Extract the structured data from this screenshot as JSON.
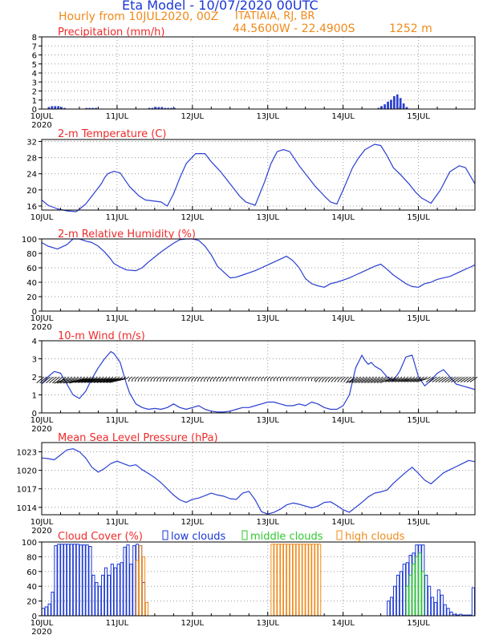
{
  "header": {
    "title": "Eta Model - 10/07/2020 00UTC",
    "subtitle": "Hourly from 10JUL2020, 00Z",
    "station": "ITATIAIA, RJ, BR",
    "coords": "44.5600W - 22.4900S",
    "elevation": "1252  m",
    "colors": {
      "title": "#1a37d6",
      "orange": "#f08a19",
      "red": "#f02a2a"
    }
  },
  "x_axis": {
    "labels": [
      "10JUL",
      "11JUL",
      "12JUL",
      "13JUL",
      "14JUL",
      "15JUL"
    ],
    "year": "2020",
    "range_hours": [
      0,
      138
    ]
  },
  "chart_data": [
    {
      "type": "bar",
      "title": "Precipitation (mm/h)",
      "ylim": [
        0,
        8
      ],
      "yticks": [
        0,
        1,
        2,
        3,
        4,
        5,
        6,
        7,
        8
      ],
      "series": [
        {
          "name": "precipitation",
          "color": "#2a3fd0",
          "x": [
            2,
            3,
            4,
            5,
            6,
            7,
            14,
            15,
            16,
            17,
            34,
            35,
            36,
            37,
            38,
            39,
            40,
            41,
            42,
            107,
            108,
            109,
            110,
            111,
            112,
            113,
            114,
            115,
            116
          ],
          "values": [
            0.2,
            0.3,
            0.3,
            0.3,
            0.2,
            0.1,
            0.1,
            0.1,
            0.1,
            0.1,
            0.1,
            0.1,
            0.2,
            0.2,
            0.2,
            0.1,
            0.1,
            0.1,
            0.1,
            0.1,
            0.3,
            0.5,
            0.8,
            1.0,
            1.4,
            1.6,
            1.2,
            0.6,
            0.2
          ]
        }
      ]
    },
    {
      "type": "line",
      "title": "2-m Temperature (C)",
      "ylim": [
        15,
        32.5
      ],
      "yticks": [
        16,
        20,
        24,
        28,
        32
      ],
      "series": [
        {
          "name": "temperature",
          "color": "#2a3fd0",
          "x": [
            0,
            2,
            5,
            8,
            11,
            14,
            17,
            19,
            20,
            21,
            23,
            25,
            28,
            31,
            33,
            36,
            38,
            39,
            40,
            42,
            44,
            46,
            49,
            52,
            54,
            57,
            59,
            61,
            63,
            65,
            68,
            71,
            73,
            75,
            77,
            79,
            82,
            85,
            87,
            90,
            92,
            94,
            96,
            99,
            101,
            103,
            106,
            108,
            110,
            112,
            114,
            117,
            119,
            121,
            124,
            127,
            130,
            133,
            135,
            138
          ],
          "values": [
            17.5,
            16.2,
            15.3,
            14.8,
            14.6,
            16.5,
            19.5,
            21.5,
            23.0,
            24.0,
            24.6,
            24.2,
            20.8,
            18.5,
            17.5,
            17.2,
            17.0,
            16.5,
            16.0,
            19.0,
            23.0,
            26.5,
            29.0,
            29.0,
            27.0,
            24.5,
            22.5,
            20.5,
            18.5,
            17.0,
            16.2,
            22.0,
            26.5,
            29.5,
            30.0,
            29.5,
            26.0,
            23.0,
            21.0,
            18.5,
            17.0,
            16.5,
            20.0,
            25.5,
            28.0,
            30.0,
            31.3,
            31.0,
            28.5,
            25.5,
            24.0,
            21.5,
            19.5,
            18.0,
            16.7,
            20.0,
            24.5,
            26.0,
            25.5,
            21.5
          ]
        }
      ]
    },
    {
      "type": "line",
      "title": "2-m Relative Humidity (%)",
      "ylim": [
        0,
        100
      ],
      "yticks": [
        0,
        20,
        40,
        60,
        80,
        100
      ],
      "series": [
        {
          "name": "relative_humidity",
          "color": "#2a3fd0",
          "x": [
            0,
            2,
            5,
            8,
            10,
            12,
            14,
            16,
            18,
            20,
            22,
            23,
            25,
            27,
            30,
            32,
            34,
            36,
            38,
            40,
            42,
            44,
            46,
            48,
            50,
            52,
            54,
            56,
            58,
            60,
            62,
            64,
            66,
            68,
            70,
            72,
            74,
            76,
            78,
            80,
            82,
            84,
            86,
            88,
            90,
            92,
            94,
            96,
            98,
            100,
            102,
            104,
            106,
            108,
            110,
            112,
            114,
            116,
            118,
            120,
            122,
            124,
            126,
            128,
            130,
            132,
            134,
            136,
            138
          ],
          "values": [
            95,
            90,
            86,
            92,
            100,
            100,
            97,
            95,
            90,
            82,
            72,
            66,
            61,
            57,
            56,
            60,
            68,
            75,
            82,
            88,
            94,
            99,
            100,
            100,
            98,
            90,
            78,
            62,
            54,
            46,
            47,
            50,
            53,
            56,
            60,
            64,
            68,
            72,
            76,
            70,
            60,
            45,
            38,
            35,
            33,
            38,
            40,
            43,
            46,
            50,
            54,
            58,
            62,
            65,
            58,
            50,
            44,
            38,
            34,
            33,
            38,
            40,
            44,
            46,
            48,
            52,
            56,
            60,
            64
          ]
        }
      ]
    },
    {
      "type": "line",
      "title": "10-m Wind (m/s)",
      "ylim": [
        0,
        4
      ],
      "yticks": [
        0,
        1,
        2,
        3,
        4
      ],
      "series": [
        {
          "name": "wind_speed",
          "color": "#2a3fd0",
          "x": [
            0,
            2,
            4,
            6,
            8,
            10,
            12,
            14,
            16,
            18,
            20,
            22,
            23,
            25,
            26,
            27,
            28,
            30,
            32,
            34,
            36,
            38,
            40,
            42,
            44,
            46,
            48,
            50,
            52,
            54,
            56,
            58,
            60,
            62,
            64,
            66,
            68,
            70,
            72,
            74,
            76,
            78,
            80,
            82,
            84,
            86,
            88,
            90,
            92,
            94,
            96,
            98,
            100,
            102,
            103,
            104,
            105,
            106,
            107,
            108,
            109,
            110,
            111,
            112,
            114,
            116,
            118,
            120,
            122,
            124,
            126,
            128,
            130,
            132,
            134,
            136,
            138
          ],
          "values": [
            1.6,
            2.0,
            2.3,
            2.2,
            1.6,
            1.0,
            0.8,
            1.2,
            1.9,
            2.5,
            3.0,
            3.4,
            3.3,
            2.8,
            2.2,
            1.6,
            1.1,
            0.5,
            0.3,
            0.2,
            0.25,
            0.2,
            0.3,
            0.5,
            0.3,
            0.2,
            0.3,
            0.4,
            0.2,
            0.1,
            0.05,
            0.05,
            0.1,
            0.2,
            0.3,
            0.3,
            0.4,
            0.5,
            0.6,
            0.6,
            0.5,
            0.4,
            0.4,
            0.5,
            0.4,
            0.6,
            0.5,
            0.3,
            0.2,
            0.2,
            0.4,
            1.0,
            2.5,
            3.2,
            2.9,
            2.7,
            2.8,
            2.6,
            2.5,
            2.4,
            2.2,
            2.0,
            1.9,
            1.8,
            2.3,
            3.1,
            3.2,
            2.0,
            1.5,
            1.8,
            2.2,
            2.4,
            2.0,
            1.6,
            1.5,
            1.4,
            1.3
          ]
        }
      ]
    },
    {
      "type": "line",
      "title": "Mean Sea Level Pressure (hPa)",
      "ylim": [
        1012.8,
        1024.5
      ],
      "yticks": [
        1014,
        1017,
        1020,
        1023
      ],
      "series": [
        {
          "name": "mslp",
          "color": "#2a3fd0",
          "x": [
            0,
            2,
            4,
            6,
            8,
            10,
            12,
            14,
            16,
            18,
            20,
            22,
            24,
            26,
            28,
            30,
            32,
            34,
            36,
            38,
            40,
            42,
            44,
            46,
            48,
            50,
            52,
            54,
            56,
            58,
            60,
            62,
            64,
            66,
            68,
            70,
            72,
            74,
            76,
            78,
            80,
            82,
            84,
            86,
            88,
            90,
            92,
            94,
            96,
            98,
            100,
            102,
            104,
            106,
            108,
            110,
            112,
            114,
            116,
            118,
            120,
            122,
            124,
            126,
            128,
            130,
            132,
            134,
            136,
            138
          ],
          "values": [
            1022,
            1021.9,
            1021.7,
            1022.5,
            1023.3,
            1023.5,
            1023,
            1022,
            1020.5,
            1019.7,
            1020.3,
            1021.1,
            1021.5,
            1021.1,
            1020.7,
            1020.9,
            1020.1,
            1019.5,
            1018.8,
            1018,
            1017,
            1016,
            1015.2,
            1014.8,
            1015.3,
            1015.5,
            1015.9,
            1016.3,
            1016,
            1015.8,
            1015.4,
            1015.3,
            1016.3,
            1016.6,
            1015.2,
            1013.3,
            1012.9,
            1013.2,
            1013.7,
            1014.4,
            1014.7,
            1014.5,
            1014.2,
            1013.9,
            1014.2,
            1014.8,
            1014.9,
            1014.3,
            1013.6,
            1013.2,
            1014,
            1014.8,
            1015.7,
            1016.3,
            1016.5,
            1016.8,
            1017.9,
            1018.8,
            1019.7,
            1020.5,
            1019.5,
            1018.4,
            1017.8,
            1018.7,
            1019.6,
            1020.1,
            1020.6,
            1021.1,
            1021.6,
            1021.4
          ]
        }
      ]
    },
    {
      "type": "bar",
      "title": "Cloud Cover (%)",
      "legend": [
        "low clouds",
        "middle clouds",
        "high clouds"
      ],
      "ylim": [
        0,
        100
      ],
      "yticks": [
        0,
        20,
        40,
        60,
        80,
        100
      ],
      "series": [
        {
          "name": "low clouds",
          "color": "#1a37d6",
          "x": [
            0,
            1,
            2,
            3,
            4,
            5,
            6,
            7,
            8,
            9,
            10,
            11,
            12,
            13,
            14,
            15,
            16,
            17,
            18,
            19,
            20,
            21,
            22,
            23,
            24,
            25,
            26,
            27,
            28,
            29,
            30,
            31,
            32
          ],
          "values": [
            10,
            12,
            16,
            32,
            95,
            97,
            97,
            97,
            97,
            97,
            97,
            97,
            96,
            96,
            96,
            94,
            55,
            45,
            40,
            55,
            65,
            55,
            70,
            65,
            70,
            72,
            93,
            96,
            70,
            95,
            97,
            95,
            45
          ]
        },
        {
          "name": "low clouds (late)",
          "color": "#1a37d6",
          "x": [
            110,
            111,
            112,
            113,
            114,
            115,
            116,
            117,
            118,
            119,
            120,
            121,
            122,
            123,
            124,
            125,
            126,
            127,
            128,
            129,
            130,
            131,
            132,
            133,
            134,
            135,
            136,
            137
          ],
          "values": [
            20,
            25,
            40,
            55,
            60,
            70,
            72,
            82,
            85,
            96,
            96,
            96,
            55,
            40,
            25,
            18,
            35,
            28,
            15,
            10,
            5,
            2,
            1,
            2,
            1,
            1,
            1,
            38
          ]
        },
        {
          "name": "middle clouds",
          "color": "#2ec92e",
          "x": [
            116,
            117,
            118,
            119,
            120,
            121
          ],
          "values": [
            40,
            55,
            70,
            80,
            85,
            60
          ]
        },
        {
          "name": "high clouds",
          "color": "#f08a19",
          "x": [
            30,
            31,
            32,
            33,
            73,
            74,
            75,
            76,
            77,
            78,
            79,
            80,
            81,
            82,
            83,
            84,
            85,
            86,
            87,
            88
          ],
          "values": [
            75,
            95,
            80,
            18,
            97,
            97,
            97,
            97,
            97,
            97,
            97,
            97,
            97,
            97,
            97,
            97,
            97,
            97,
            97,
            97
          ]
        }
      ]
    }
  ]
}
